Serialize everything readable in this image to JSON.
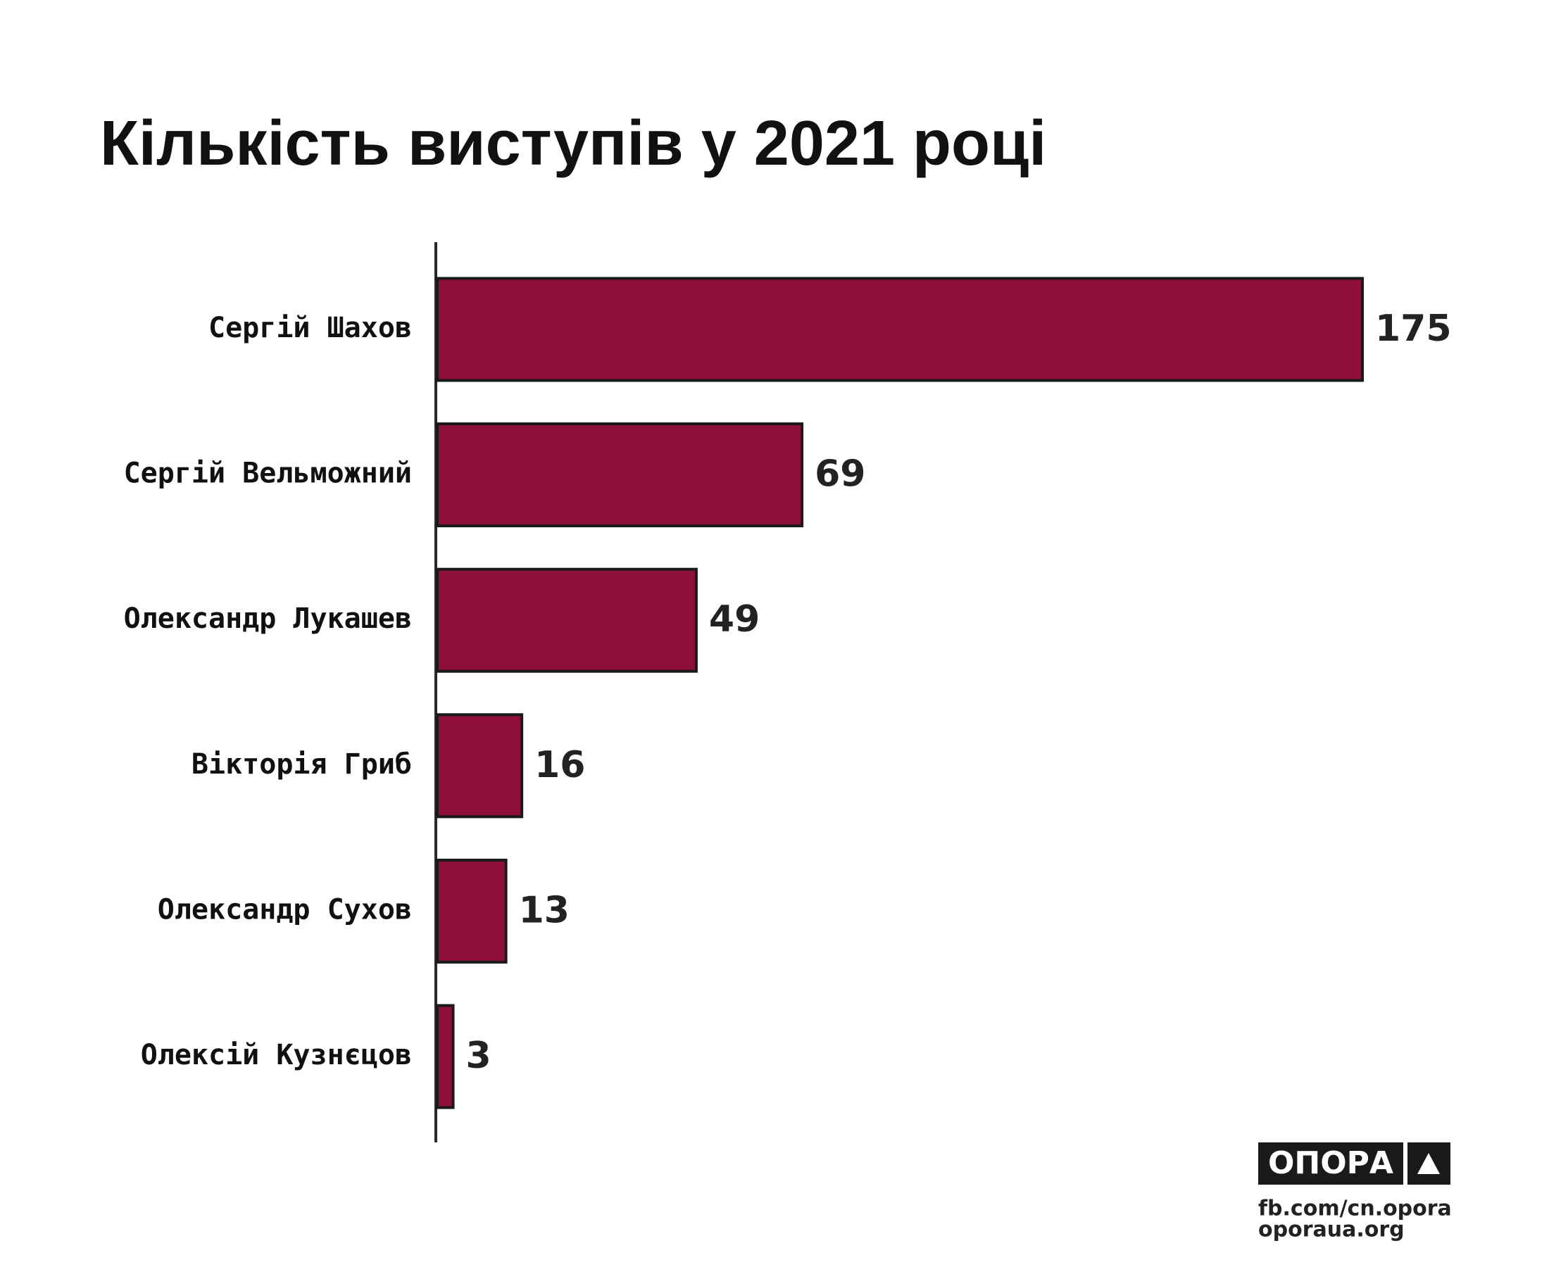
{
  "chart_data": {
    "type": "bar",
    "orientation": "horizontal",
    "title": "Кількість виступів у 2021 році",
    "categories": [
      "Сергій Шахов",
      "Сергій Вельможний",
      "Олександр Лукашев",
      "Вікторія Гриб",
      "Олександр Сухов",
      "Олексій Кузнєцов"
    ],
    "values": [
      175,
      69,
      49,
      16,
      13,
      3
    ],
    "color": "#8e1038"
  },
  "logo": {
    "name": "ОПОРА",
    "links": [
      "fb.com/cn.opora",
      "oporaua.org"
    ]
  }
}
